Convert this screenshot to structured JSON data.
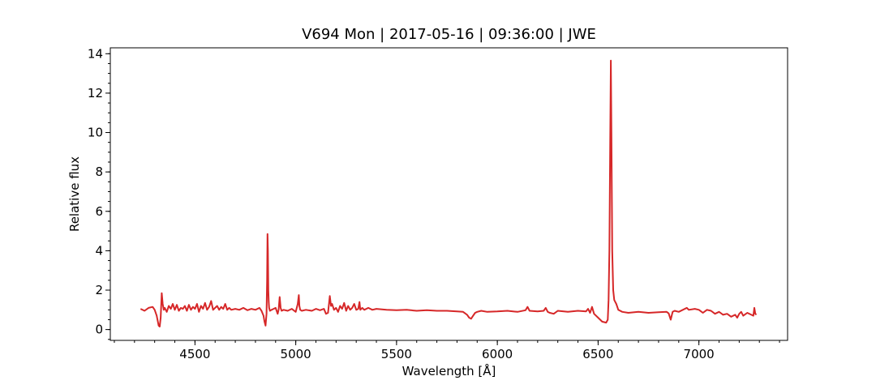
{
  "chart_data": {
    "type": "line",
    "title": "V694 Mon | 2017-05-16 | 09:36:00 | JWE",
    "xlabel": "Wavelength [Å]",
    "ylabel": "Relative flux",
    "xlim": [
      4080,
      7440
    ],
    "ylim": [
      -0.55,
      14.3
    ],
    "x_ticks": [
      4500,
      5000,
      5500,
      6000,
      6500,
      7000
    ],
    "y_ticks": [
      0,
      2,
      4,
      6,
      8,
      10,
      12,
      14
    ],
    "x_minor_step": 100,
    "y_minor_step": 0.5,
    "grid": false,
    "line_color": "#d62728",
    "series": [
      {
        "x": [
          4230,
          4250,
          4270,
          4290,
          4300,
          4310,
          4320,
          4325,
          4330,
          4335,
          4340,
          4345,
          4350,
          4360,
          4370,
          4380,
          4390,
          4400,
          4410,
          4420,
          4430,
          4440,
          4450,
          4460,
          4470,
          4480,
          4490,
          4500,
          4510,
          4520,
          4530,
          4540,
          4550,
          4560,
          4570,
          4580,
          4590,
          4600,
          4610,
          4620,
          4630,
          4640,
          4650,
          4660,
          4670,
          4680,
          4700,
          4720,
          4740,
          4760,
          4780,
          4800,
          4820,
          4830,
          4840,
          4845,
          4850,
          4855,
          4858,
          4860,
          4862,
          4864,
          4866,
          4868,
          4872,
          4880,
          4890,
          4900,
          4910,
          4915,
          4920,
          4925,
          4930,
          4940,
          4960,
          4980,
          5000,
          5010,
          5015,
          5018,
          5022,
          5030,
          5050,
          5080,
          5100,
          5120,
          5140,
          5150,
          5160,
          5165,
          5169,
          5175,
          5180,
          5190,
          5200,
          5210,
          5220,
          5230,
          5240,
          5250,
          5260,
          5270,
          5280,
          5290,
          5300,
          5310,
          5316,
          5320,
          5330,
          5340,
          5360,
          5380,
          5400,
          5450,
          5500,
          5550,
          5600,
          5650,
          5700,
          5750,
          5800,
          5830,
          5850,
          5860,
          5870,
          5880,
          5890,
          5900,
          5920,
          5950,
          6000,
          6050,
          6100,
          6140,
          6150,
          6160,
          6200,
          6230,
          6240,
          6250,
          6260,
          6280,
          6300,
          6350,
          6400,
          6440,
          6450,
          6460,
          6470,
          6480,
          6500,
          6520,
          6540,
          6548,
          6552,
          6556,
          6560,
          6563,
          6566,
          6570,
          6575,
          6580,
          6590,
          6600,
          6620,
          6650,
          6700,
          6750,
          6800,
          6840,
          6850,
          6860,
          6865,
          6870,
          6880,
          6900,
          6940,
          6950,
          6980,
          7000,
          7020,
          7040,
          7060,
          7080,
          7100,
          7120,
          7140,
          7160,
          7180,
          7190,
          7200,
          7210,
          7220,
          7240,
          7260,
          7270,
          7275,
          7280,
          7285
        ],
        "y": [
          1.05,
          0.95,
          1.1,
          1.15,
          1.0,
          0.7,
          0.2,
          0.15,
          0.6,
          1.85,
          1.3,
          1.0,
          1.1,
          0.9,
          1.2,
          1.05,
          1.3,
          1.0,
          1.25,
          0.95,
          1.1,
          1.05,
          1.2,
          0.95,
          1.25,
          1.0,
          1.15,
          1.05,
          1.3,
          0.9,
          1.2,
          1.05,
          1.35,
          1.0,
          1.15,
          1.45,
          1.0,
          1.1,
          1.2,
          1.0,
          1.15,
          1.05,
          1.3,
          1.0,
          1.1,
          1.0,
          1.05,
          1.0,
          1.1,
          0.98,
          1.05,
          1.0,
          1.1,
          0.95,
          0.7,
          0.4,
          0.2,
          0.8,
          2.5,
          4.85,
          4.0,
          2.0,
          1.4,
          1.1,
          0.95,
          1.0,
          1.05,
          1.1,
          0.8,
          1.0,
          1.65,
          1.1,
          0.95,
          1.0,
          0.95,
          1.05,
          0.9,
          1.3,
          1.75,
          1.2,
          1.0,
          0.95,
          1.0,
          0.95,
          1.05,
          0.98,
          1.05,
          0.8,
          0.85,
          1.3,
          1.7,
          1.2,
          1.3,
          1.0,
          1.1,
          0.9,
          1.2,
          1.05,
          1.35,
          0.95,
          1.2,
          1.0,
          1.1,
          1.3,
          1.0,
          1.05,
          1.4,
          1.0,
          1.1,
          1.0,
          1.1,
          1.0,
          1.05,
          1.0,
          0.98,
          1.0,
          0.95,
          0.98,
          0.95,
          0.95,
          0.92,
          0.9,
          0.75,
          0.6,
          0.55,
          0.7,
          0.85,
          0.9,
          0.95,
          0.9,
          0.92,
          0.95,
          0.9,
          0.98,
          1.15,
          0.95,
          0.92,
          0.95,
          1.1,
          0.9,
          0.85,
          0.8,
          0.95,
          0.9,
          0.95,
          0.92,
          1.05,
          0.85,
          1.15,
          0.8,
          0.6,
          0.4,
          0.35,
          0.5,
          1.5,
          4.0,
          9.5,
          13.65,
          10.0,
          4.0,
          2.0,
          1.5,
          1.3,
          1.0,
          0.9,
          0.85,
          0.9,
          0.85,
          0.88,
          0.9,
          0.82,
          0.5,
          0.7,
          0.9,
          0.95,
          0.9,
          1.1,
          1.0,
          1.05,
          1.0,
          0.85,
          1.0,
          0.95,
          0.8,
          0.9,
          0.75,
          0.8,
          0.65,
          0.75,
          0.6,
          0.8,
          0.9,
          0.7,
          0.85,
          0.75,
          0.7,
          1.1,
          0.8,
          0.75
        ]
      }
    ]
  }
}
